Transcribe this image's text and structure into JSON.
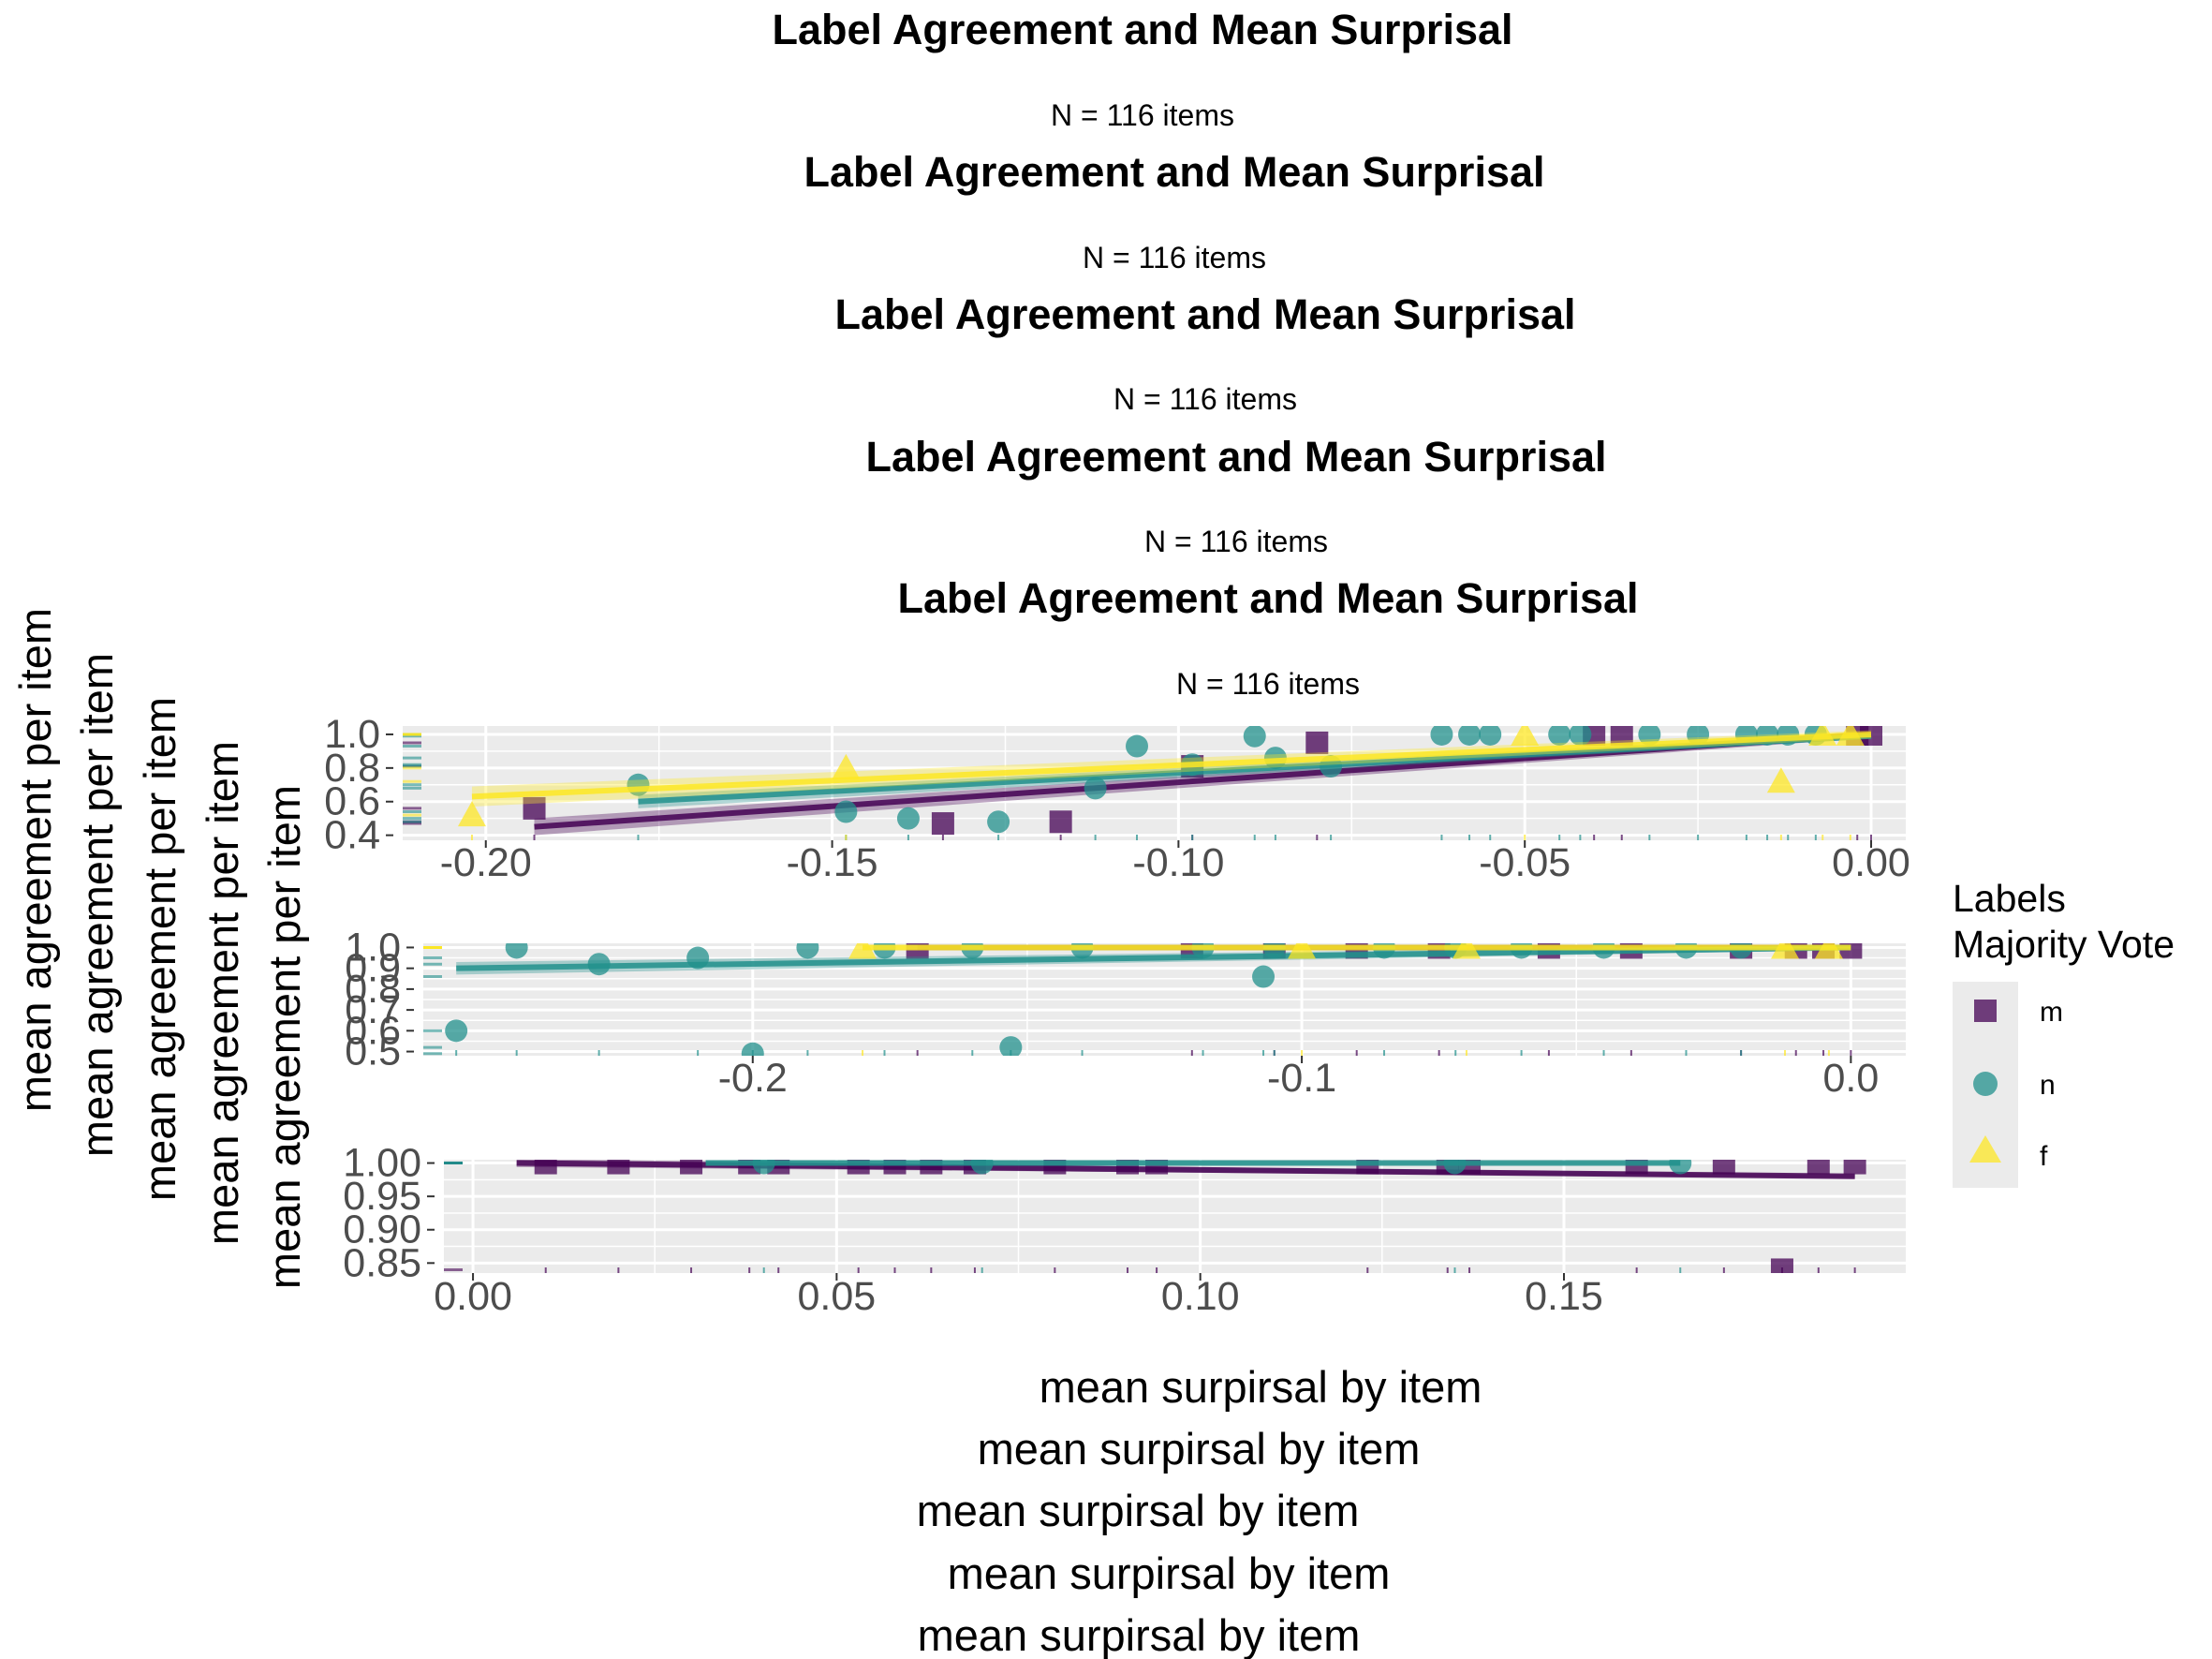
{
  "titles": [
    "Label Agreement and Mean Surprisal",
    "Label Agreement and Mean Surprisal",
    "Label Agreement and Mean Surprisal",
    "Label Agreement and Mean Surprisal",
    "Label Agreement and Mean Surprisal"
  ],
  "subtitles": [
    "N = 116 items",
    "N = 116 items",
    "N = 116 items",
    "N = 116 items",
    "N = 116 items"
  ],
  "ylabels": [
    "mean agreement per item",
    "mean agreement per item",
    "mean agreement per item",
    "mean agreement per item",
    "mean agreement per item"
  ],
  "xlabels": [
    "mean surpirsal by item",
    "mean surpirsal by item",
    "mean surpirsal by item",
    "mean surpirsal by item",
    "mean surpirsal by item"
  ],
  "legend": {
    "title_line1": "Labels",
    "title_line2": "Majority Vote",
    "items": [
      {
        "label": "m",
        "shape": "square",
        "color": "#440154"
      },
      {
        "label": "n",
        "shape": "circle",
        "color": "#21908C"
      },
      {
        "label": "f",
        "shape": "triangle",
        "color": "#FDE725"
      }
    ]
  },
  "colors": {
    "m": "#440154",
    "n": "#21908C",
    "f": "#FDE725",
    "panel_bg": "#EBEBEB",
    "grid": "#FFFFFF"
  },
  "chart_data": [
    {
      "type": "scatter",
      "xlim": [
        -0.212,
        0.005
      ],
      "ylim": [
        0.37,
        1.05
      ],
      "xticks": [
        -0.2,
        -0.15,
        -0.1,
        -0.05,
        0.0
      ],
      "xticklabels": [
        "-0.20",
        "-0.15",
        "-0.10",
        "-0.05",
        "0.00"
      ],
      "yticks": [
        0.4,
        0.6,
        0.8,
        1.0
      ],
      "yticklabels": [
        "0.4",
        "0.6",
        "0.8",
        "1.0"
      ],
      "series": [
        {
          "group": "m",
          "points": [
            [
              -0.193,
              0.56
            ],
            [
              -0.134,
              0.47
            ],
            [
              -0.117,
              0.48
            ],
            [
              -0.098,
              0.81
            ],
            [
              -0.08,
              0.95
            ],
            [
              -0.04,
              1.0
            ],
            [
              -0.036,
              1.0
            ],
            [
              -0.002,
              1.0
            ],
            [
              0.0,
              1.0
            ]
          ],
          "fit": [
            [
              -0.193,
              0.45
            ],
            [
              0.0,
              1.0
            ]
          ],
          "band": 0.05
        },
        {
          "group": "n",
          "points": [
            [
              -0.178,
              0.7
            ],
            [
              -0.148,
              0.54
            ],
            [
              -0.139,
              0.5
            ],
            [
              -0.126,
              0.48
            ],
            [
              -0.112,
              0.68
            ],
            [
              -0.106,
              0.93
            ],
            [
              -0.098,
              0.82
            ],
            [
              -0.089,
              0.99
            ],
            [
              -0.086,
              0.86
            ],
            [
              -0.078,
              0.81
            ],
            [
              -0.062,
              1.0
            ],
            [
              -0.058,
              1.0
            ],
            [
              -0.055,
              1.0
            ],
            [
              -0.045,
              1.0
            ],
            [
              -0.042,
              1.0
            ],
            [
              -0.032,
              1.0
            ],
            [
              -0.025,
              1.0
            ],
            [
              -0.018,
              1.0
            ],
            [
              -0.015,
              1.0
            ],
            [
              -0.012,
              1.0
            ],
            [
              -0.008,
              1.0
            ]
          ],
          "fit": [
            [
              -0.178,
              0.6
            ],
            [
              0.0,
              0.99
            ]
          ],
          "band": 0.04
        },
        {
          "group": "f",
          "points": [
            [
              -0.202,
              0.52
            ],
            [
              -0.148,
              0.8
            ],
            [
              -0.05,
              1.0
            ],
            [
              -0.013,
              0.72
            ],
            [
              -0.007,
              1.0
            ],
            [
              -0.003,
              1.0
            ]
          ],
          "fit": [
            [
              -0.202,
              0.63
            ],
            [
              0.0,
              1.0
            ]
          ],
          "band": 0.06
        }
      ]
    },
    {
      "type": "scatter",
      "xlim": [
        -0.26,
        0.01
      ],
      "ylim": [
        0.48,
        1.02
      ],
      "xticks": [
        -0.2,
        -0.1,
        0.0
      ],
      "xticklabels": [
        "-0.2",
        "-0.1",
        "0.0"
      ],
      "yticks": [
        0.5,
        0.6,
        0.7,
        0.8,
        0.9,
        1.0
      ],
      "yticklabels": [
        "0.5",
        "0.6",
        "0.7",
        "0.8",
        "0.9",
        "1.0"
      ],
      "series": [
        {
          "group": "m",
          "points": [
            [
              -0.17,
              1.0
            ],
            [
              -0.12,
              1.0
            ],
            [
              -0.105,
              1.0
            ],
            [
              -0.09,
              1.0
            ],
            [
              -0.075,
              1.0
            ],
            [
              -0.055,
              1.0
            ],
            [
              -0.04,
              1.0
            ],
            [
              -0.02,
              1.0
            ],
            [
              -0.01,
              1.0
            ],
            [
              -0.005,
              1.0
            ],
            [
              0.0,
              1.0
            ]
          ],
          "fit": [
            [
              -0.17,
              1.0
            ],
            [
              0.0,
              1.0
            ]
          ],
          "band": 0.01
        },
        {
          "group": "n",
          "points": [
            [
              -0.254,
              0.6
            ],
            [
              -0.243,
              1.0
            ],
            [
              -0.228,
              0.92
            ],
            [
              -0.2,
              0.49
            ],
            [
              -0.21,
              0.95
            ],
            [
              -0.19,
              1.0
            ],
            [
              -0.176,
              1.0
            ],
            [
              -0.153,
              0.52
            ],
            [
              -0.16,
              1.0
            ],
            [
              -0.14,
              1.0
            ],
            [
              -0.118,
              1.0
            ],
            [
              -0.107,
              0.86
            ],
            [
              -0.105,
              1.0
            ],
            [
              -0.085,
              1.0
            ],
            [
              -0.072,
              1.0
            ],
            [
              -0.06,
              1.0
            ],
            [
              -0.045,
              1.0
            ],
            [
              -0.03,
              1.0
            ],
            [
              -0.02,
              1.0
            ]
          ],
          "fit": [
            [
              -0.254,
              0.9
            ],
            [
              0.0,
              1.0
            ]
          ],
          "band": 0.03
        },
        {
          "group": "f",
          "points": [
            [
              -0.18,
              1.0
            ],
            [
              -0.1,
              1.0
            ],
            [
              -0.07,
              1.0
            ],
            [
              -0.012,
              1.0
            ],
            [
              -0.004,
              1.0
            ]
          ],
          "fit": [
            [
              -0.18,
              1.0
            ],
            [
              0.0,
              1.0
            ]
          ],
          "band": 0.01
        }
      ]
    },
    {
      "type": "scatter",
      "xlim": [
        -0.004,
        0.197
      ],
      "ylim": [
        0.835,
        1.005
      ],
      "xticks": [
        0.0,
        0.05,
        0.1,
        0.15
      ],
      "xticklabels": [
        "0.00",
        "0.05",
        "0.10",
        "0.15"
      ],
      "yticks": [
        0.85,
        0.9,
        0.95,
        1.0
      ],
      "yticklabels": [
        "0.85",
        "0.90",
        "0.95",
        "1.00"
      ],
      "series": [
        {
          "group": "m",
          "points": [
            [
              0.01,
              1.0
            ],
            [
              0.02,
              1.0
            ],
            [
              0.03,
              1.0
            ],
            [
              0.038,
              1.0
            ],
            [
              0.042,
              1.0
            ],
            [
              0.053,
              1.0
            ],
            [
              0.058,
              1.0
            ],
            [
              0.063,
              1.0
            ],
            [
              0.069,
              1.0
            ],
            [
              0.08,
              1.0
            ],
            [
              0.09,
              1.0
            ],
            [
              0.094,
              1.0
            ],
            [
              0.123,
              1.0
            ],
            [
              0.134,
              1.0
            ],
            [
              0.137,
              1.0
            ],
            [
              0.16,
              1.0
            ],
            [
              0.172,
              1.0
            ],
            [
              0.18,
              0.84
            ],
            [
              0.185,
              1.0
            ],
            [
              0.19,
              1.0
            ]
          ],
          "fit": [
            [
              0.006,
              1.0
            ],
            [
              0.19,
              0.98
            ]
          ],
          "band": 0.006
        },
        {
          "group": "n",
          "points": [
            [
              0.04,
              1.0
            ],
            [
              0.07,
              1.0
            ],
            [
              0.135,
              1.0
            ],
            [
              0.166,
              1.0
            ]
          ],
          "fit": [
            [
              0.032,
              1.0
            ],
            [
              0.166,
              1.0
            ]
          ],
          "band": 0.004
        }
      ]
    }
  ]
}
